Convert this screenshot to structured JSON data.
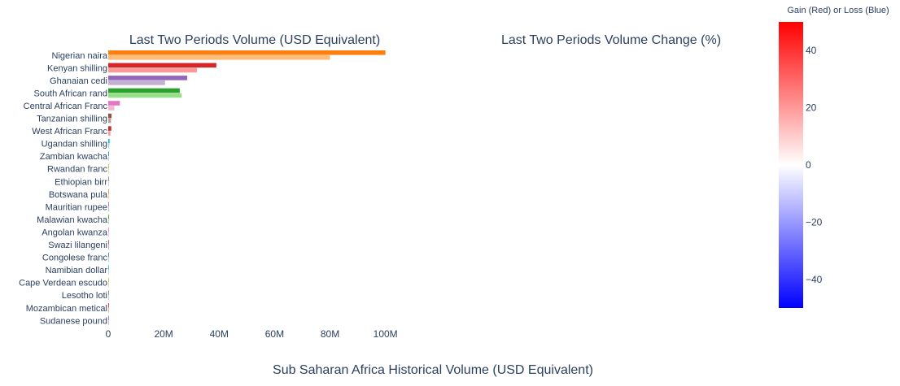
{
  "page": {
    "main_title": "Sub Saharan Africa Historical Volume (USD Equivalent)"
  },
  "chart_data": [
    {
      "type": "bar",
      "orientation": "horizontal",
      "title": "Last Two Periods Volume (USD Equivalent)",
      "xlabel": "",
      "ylabel": "",
      "xlim": [
        0,
        105000000
      ],
      "xticks": [
        0,
        20000000,
        40000000,
        60000000,
        80000000,
        100000000
      ],
      "xtick_labels": [
        "0",
        "20M",
        "40M",
        "60M",
        "80M",
        "100M"
      ],
      "grid": false,
      "categories": [
        "Nigerian naira",
        "Kenyan shilling",
        "Ghanaian cedi",
        "South African rand",
        "Central African Franc",
        "Tanzanian shilling",
        "West African Franc",
        "Ugandan shilling",
        "Zambian kwacha",
        "Rwandan franc",
        "Ethiopian birr",
        "Botswana pula",
        "Mauritian rupee",
        "Malawian kwacha",
        "Angolan kwanza",
        "Swazi lilangeni",
        "Congolese franc",
        "Namibian dollar",
        "Cape Verdean escudo",
        "Lesotho loti",
        "Mozambican metical",
        "Sudanese pound"
      ],
      "series": [
        {
          "period": "latest",
          "values": [
            100000000,
            39000000,
            28500000,
            25800000,
            4200000,
            1200000,
            1100000,
            500000,
            200000,
            150000,
            120000,
            100000,
            80000,
            70000,
            60000,
            50000,
            40000,
            30000,
            20000,
            15000,
            10000,
            5000
          ]
        },
        {
          "period": "previous",
          "values": [
            80000000,
            32000000,
            20500000,
            26500000,
            2200000,
            1000000,
            800000,
            400000,
            150000,
            120000,
            100000,
            80000,
            60000,
            50000,
            40000,
            30000,
            25000,
            20000,
            15000,
            10000,
            8000,
            3000
          ]
        }
      ],
      "colors": [
        [
          "#ff7f0e",
          "#ffbb78"
        ],
        [
          "#d62728",
          "#ff9896"
        ],
        [
          "#9467bd",
          "#c5b0d5"
        ],
        [
          "#2ca02c",
          "#98df8a"
        ],
        [
          "#e377c2",
          "#f7b6d2"
        ],
        [
          "#8c564b",
          "#c49c94"
        ],
        [
          "#d62728",
          "#ff9896"
        ],
        [
          "#17becf",
          "#9edae5"
        ],
        [
          "#1f77b4",
          "#aec7e8"
        ],
        [
          "#bcbd22",
          "#dbdb8d"
        ],
        [
          "#7f7f7f",
          "#c7c7c7"
        ],
        [
          "#ff7f0e",
          "#ffbb78"
        ],
        [
          "#9467bd",
          "#c5b0d5"
        ],
        [
          "#2ca02c",
          "#98df8a"
        ],
        [
          "#e377c2",
          "#f7b6d2"
        ],
        [
          "#8c564b",
          "#c49c94"
        ],
        [
          "#1f77b4",
          "#aec7e8"
        ],
        [
          "#17becf",
          "#9edae5"
        ],
        [
          "#bcbd22",
          "#dbdb8d"
        ],
        [
          "#7f7f7f",
          "#c7c7c7"
        ],
        [
          "#d62728",
          "#ff9896"
        ],
        [
          "#9467bd",
          "#c5b0d5"
        ]
      ]
    },
    {
      "type": "bar",
      "title": "Last Two Periods Volume Change (%)",
      "series": []
    },
    {
      "type": "colorbar",
      "title": "Gain (Red) or Loss (Blue)",
      "range": [
        -50,
        50
      ],
      "ticks": [
        40,
        20,
        0,
        -20,
        -40
      ],
      "tick_labels": [
        "40",
        "20",
        "0",
        "−20",
        "−40"
      ],
      "colors": [
        "#0000ff",
        "#ffffff",
        "#ff0000"
      ]
    }
  ]
}
